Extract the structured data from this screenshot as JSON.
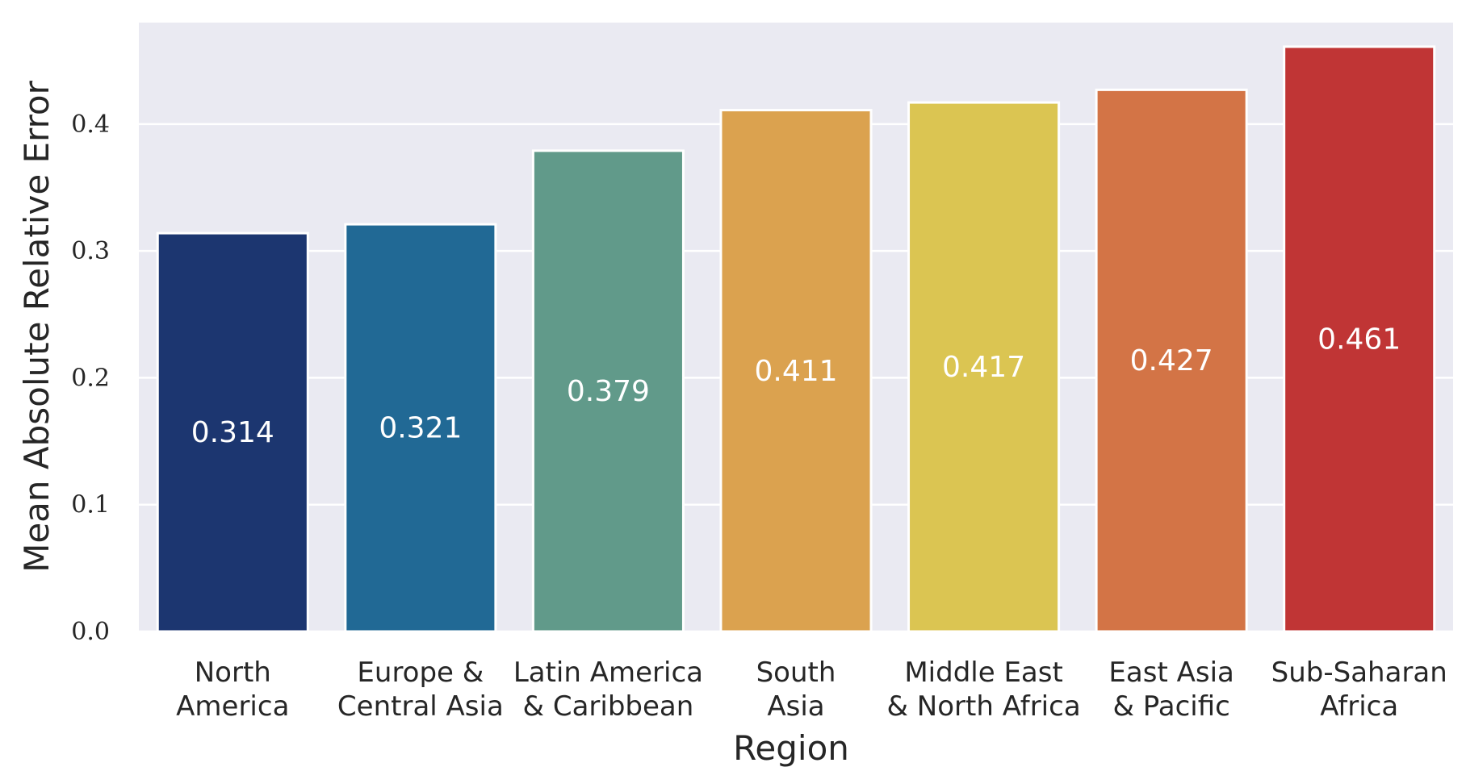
{
  "chart_data": {
    "type": "bar",
    "xlabel": "Region",
    "ylabel": "Mean Absolute Relative Error",
    "ylim": [
      0,
      0.48
    ],
    "yticks": [
      0.0,
      0.1,
      0.2,
      0.3,
      0.4
    ],
    "ytick_labels": [
      "0.0",
      "0.1",
      "0.2",
      "0.3",
      "0.4"
    ],
    "grid": true,
    "categories": [
      [
        "North",
        "America"
      ],
      [
        "Europe &",
        "Central Asia"
      ],
      [
        "Latin America",
        "& Caribbean"
      ],
      [
        "South",
        "Asia"
      ],
      [
        "Middle East",
        "& North Africa"
      ],
      [
        "East Asia",
        "& Pacific"
      ],
      [
        "Sub-Saharan",
        "Africa"
      ]
    ],
    "values": [
      0.314,
      0.321,
      0.379,
      0.411,
      0.417,
      0.427,
      0.461
    ],
    "value_labels": [
      "0.314",
      "0.321",
      "0.379",
      "0.411",
      "0.417",
      "0.427",
      "0.461"
    ],
    "colors": [
      "#1c3670",
      "#216995",
      "#619a8a",
      "#dba24f",
      "#dbc552",
      "#d37446",
      "#c03535"
    ],
    "background_color": "#eaeaf2",
    "grid_color": "#ffffff"
  }
}
